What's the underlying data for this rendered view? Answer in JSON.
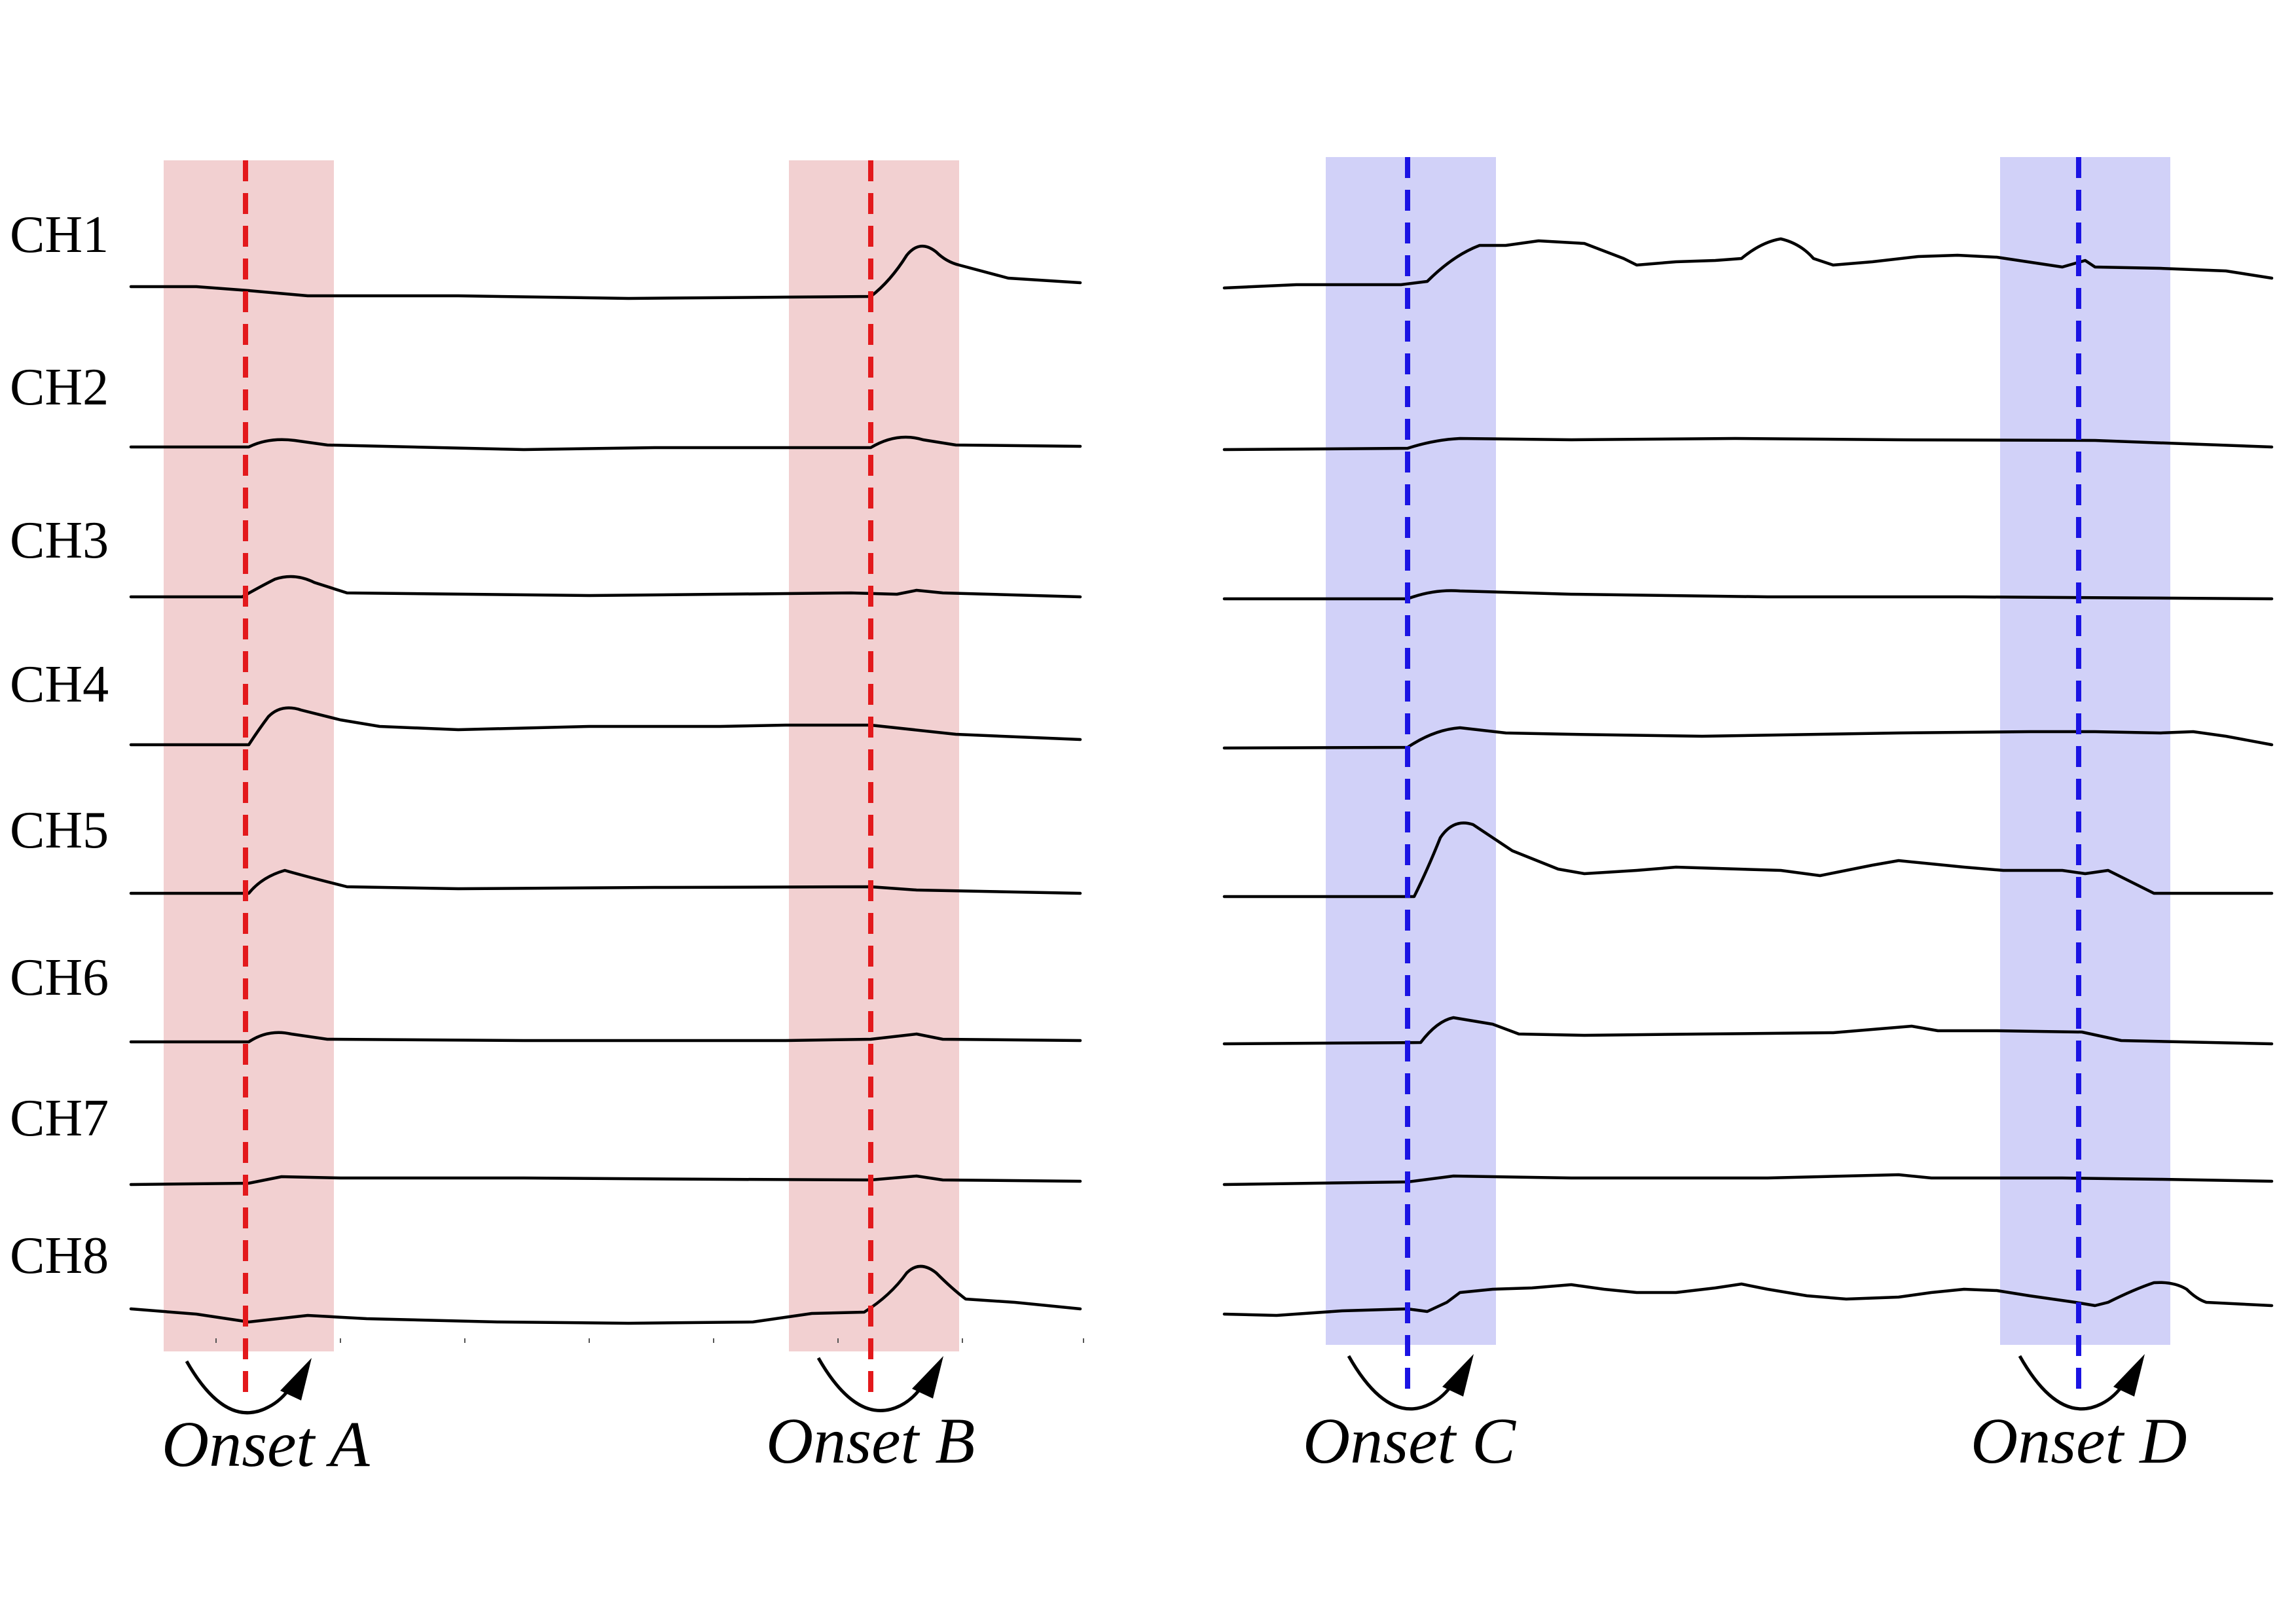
{
  "channels": [
    "CH1",
    "CH2",
    "CH3",
    "CH4",
    "CH5",
    "CH6",
    "CH7",
    "CH8"
  ],
  "onsets": [
    {
      "label": "Onset A",
      "color": "#e3191c",
      "band_color": "#f2d0d1"
    },
    {
      "label": "Onset B",
      "color": "#e3191c",
      "band_color": "#f2d0d1"
    },
    {
      "label": "Onset C",
      "color": "#1b14e3",
      "band_color": "#d1d1f8"
    },
    {
      "label": "Onset D",
      "color": "#1b14e3",
      "band_color": "#d1d1f8"
    }
  ],
  "colors": {
    "trace": "#000000",
    "background": "#ffffff"
  }
}
